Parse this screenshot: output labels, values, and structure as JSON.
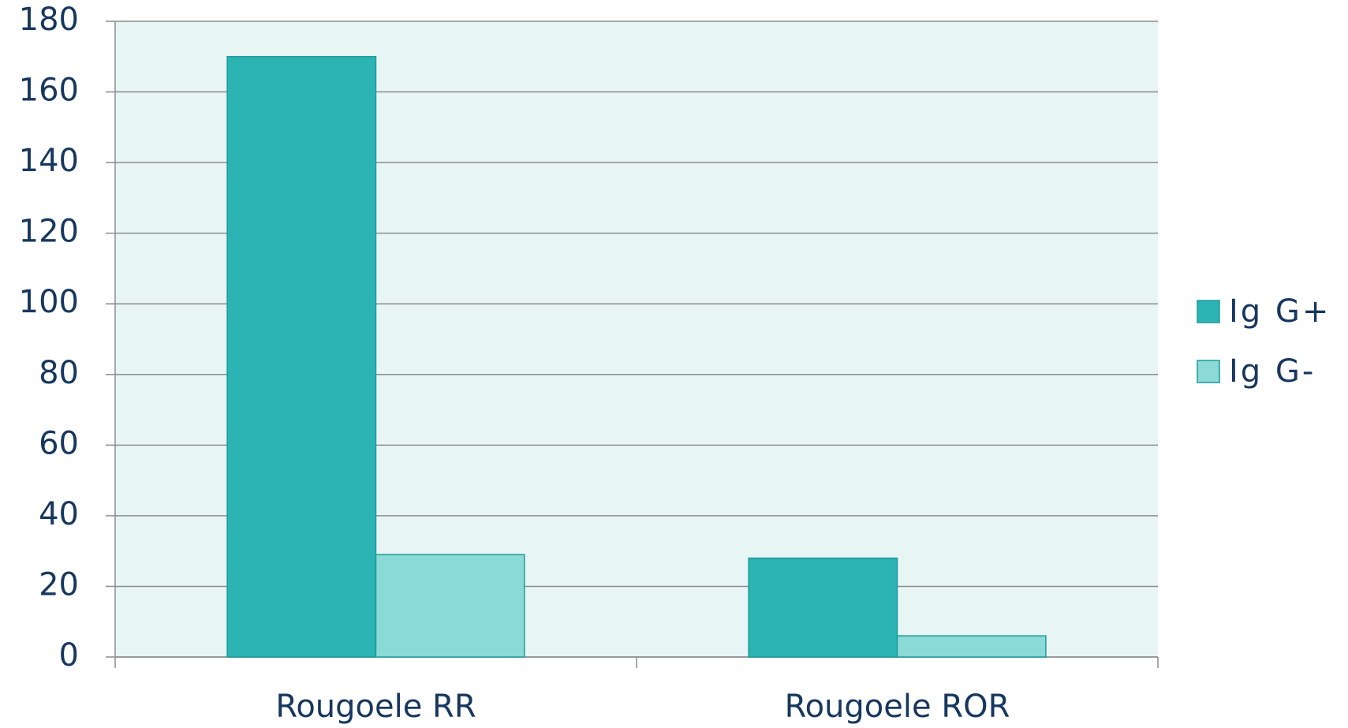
{
  "chart_data": {
    "type": "bar",
    "categories": [
      "Rougoele RR",
      "Rougoele ROR"
    ],
    "series": [
      {
        "name": "Ig G+",
        "color": "#2cb3b3",
        "values": [
          170,
          28
        ]
      },
      {
        "name": "Ig G-",
        "color": "#8adad8",
        "values": [
          29,
          6
        ]
      }
    ],
    "ylim": [
      0,
      180
    ],
    "yticks": [
      0,
      20,
      40,
      60,
      80,
      100,
      120,
      140,
      160,
      180
    ],
    "grid": true,
    "legend": "right"
  }
}
